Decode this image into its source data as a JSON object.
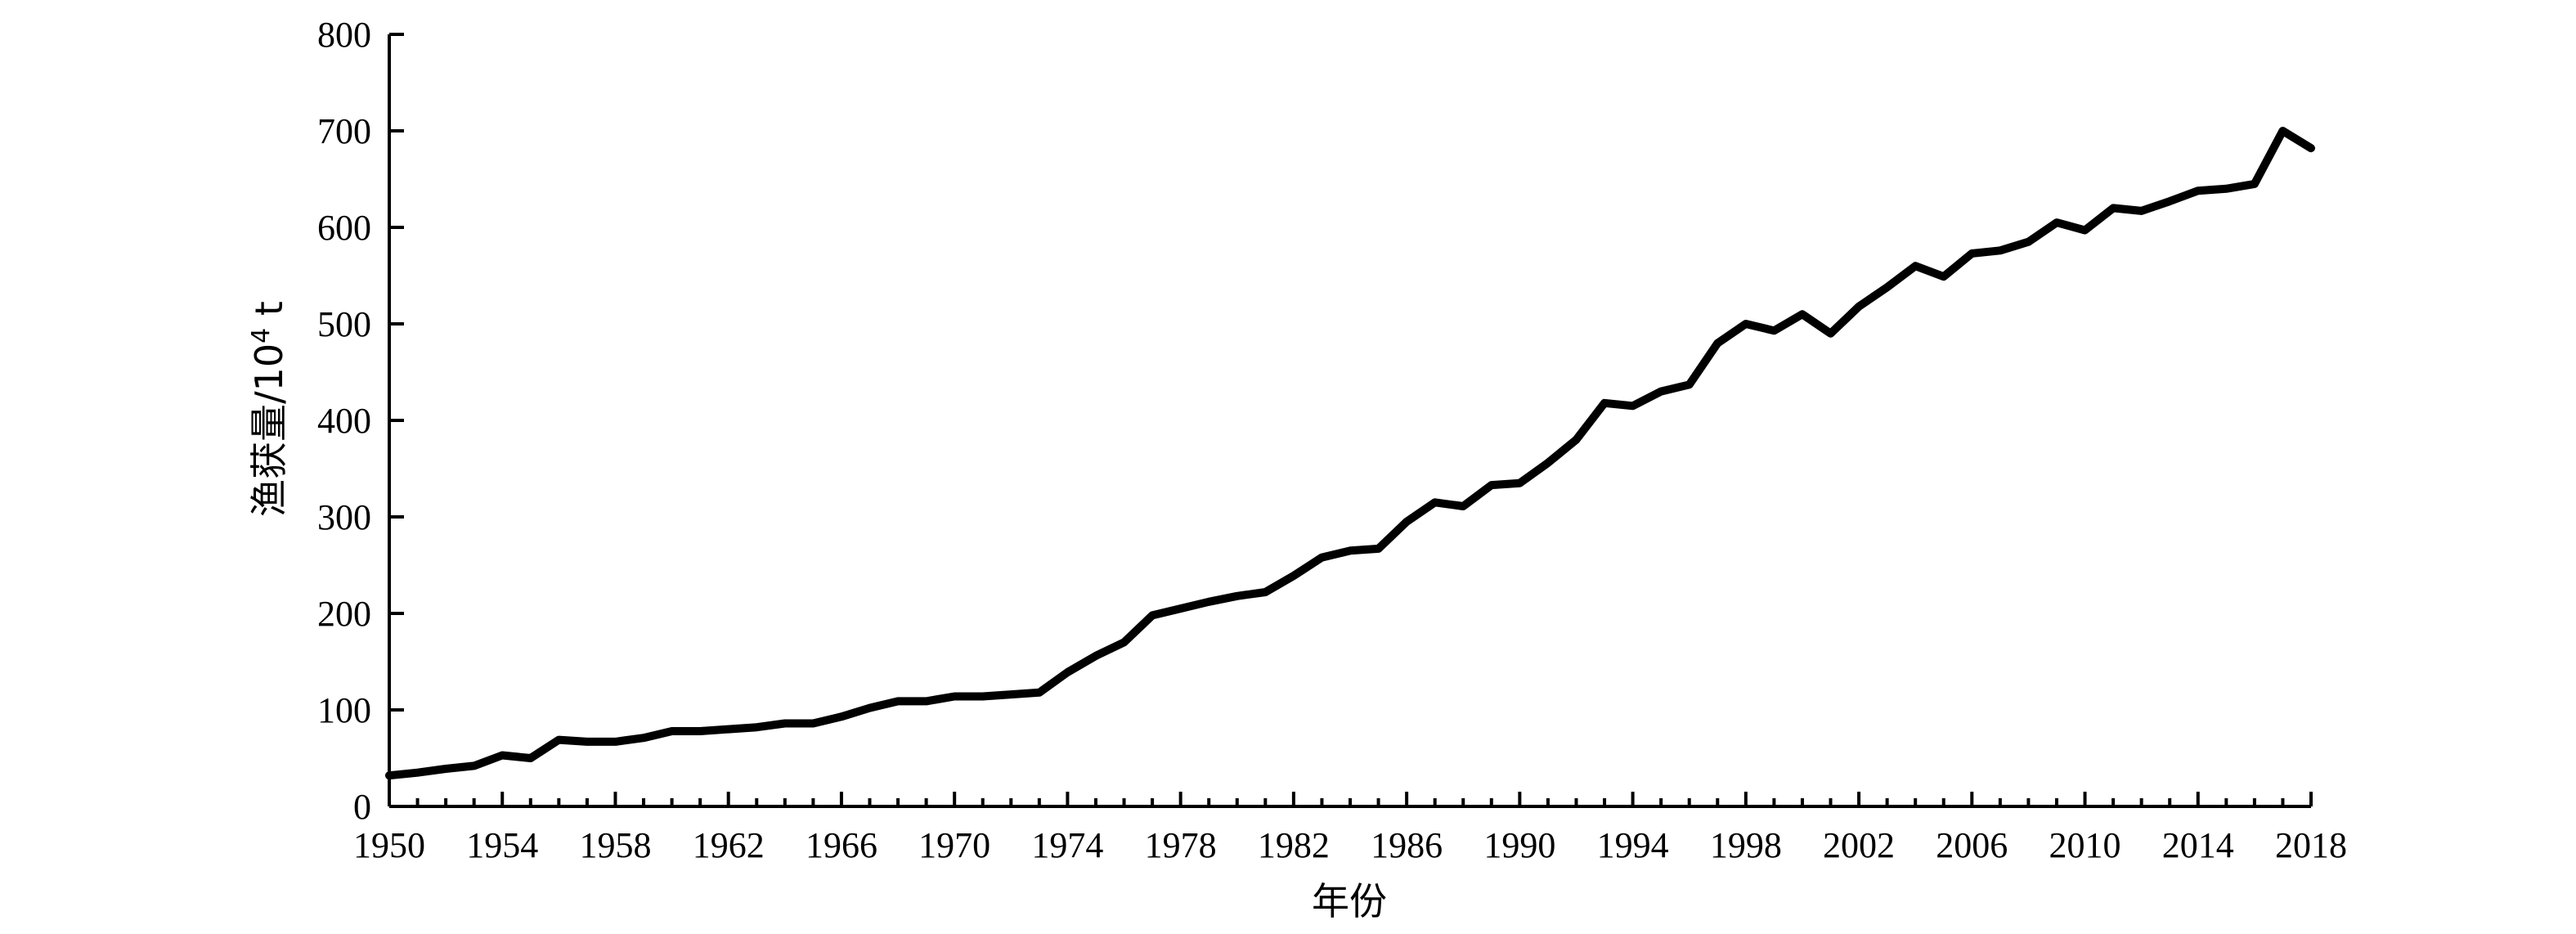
{
  "chart_data": {
    "type": "line",
    "xlabel": "年份",
    "ylabel_main": "渔获量/10",
    "ylabel_sup": "4",
    "ylabel_unit": " t",
    "xlim": [
      1950,
      2018
    ],
    "ylim": [
      0,
      800
    ],
    "x_ticks": [
      1950,
      1954,
      1958,
      1962,
      1966,
      1970,
      1974,
      1978,
      1982,
      1986,
      1990,
      1994,
      1998,
      2002,
      2006,
      2010,
      2014,
      2018
    ],
    "y_ticks": [
      0,
      100,
      200,
      300,
      400,
      500,
      600,
      700,
      800
    ],
    "grid": false,
    "legend": "none",
    "line_color": "#000000",
    "series": [
      {
        "x": [
          1950,
          1951,
          1952,
          1953,
          1954,
          1955,
          1956,
          1957,
          1958,
          1959,
          1960,
          1961,
          1962,
          1963,
          1964,
          1965,
          1966,
          1967,
          1968,
          1969,
          1970,
          1971,
          1972,
          1973,
          1974,
          1975,
          1976,
          1977,
          1978,
          1979,
          1980,
          1981,
          1982,
          1983,
          1984,
          1985,
          1986,
          1987,
          1988,
          1989,
          1990,
          1991,
          1992,
          1993,
          1994,
          1995,
          1996,
          1997,
          1998,
          1999,
          2000,
          2001,
          2002,
          2003,
          2004,
          2005,
          2006,
          2007,
          2008,
          2009,
          2010,
          2011,
          2012,
          2013,
          2014,
          2015,
          2016,
          2017,
          2018
        ],
        "values": [
          32,
          35,
          39,
          42,
          53,
          50,
          69,
          67,
          67,
          71,
          78,
          78,
          80,
          82,
          86,
          86,
          93,
          102,
          109,
          109,
          114,
          114,
          116,
          118,
          139,
          156,
          170,
          198,
          205,
          212,
          218,
          222,
          239,
          258,
          265,
          267,
          295,
          315,
          311,
          333,
          335,
          356,
          380,
          418,
          415,
          430,
          437,
          480,
          500,
          493,
          510,
          490,
          518,
          538,
          560,
          549,
          573,
          576,
          585,
          605,
          597,
          620,
          617,
          627,
          638,
          640,
          645,
          700,
          682
        ]
      }
    ]
  }
}
